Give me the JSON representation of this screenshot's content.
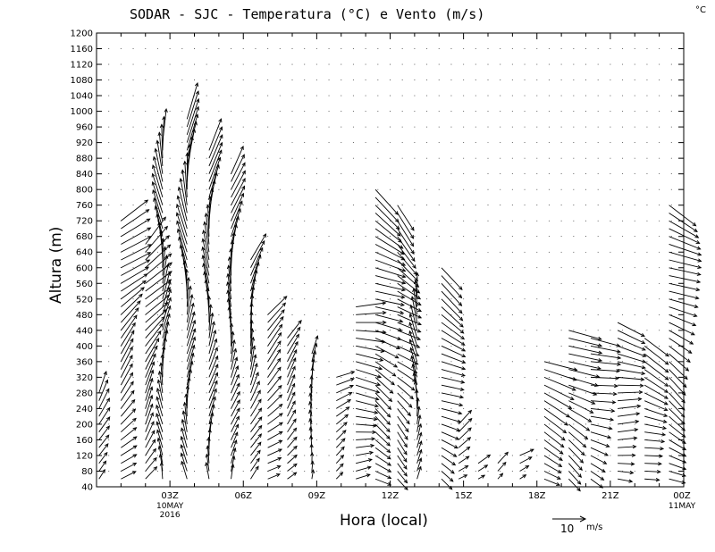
{
  "chart_data": {
    "type": "wind_barb_profile",
    "title": "SODAR - SJC - Temperatura (°C) e Vento (m/s)",
    "unit_corner": "°C",
    "xlabel": "Hora (local)",
    "ylabel": "Altura (m)",
    "ylim": [
      40,
      1200
    ],
    "xlim_hours": [
      0,
      24
    ],
    "y_ticks": [
      "40",
      "80",
      "120",
      "160",
      "200",
      "240",
      "280",
      "320",
      "360",
      "400",
      "440",
      "480",
      "520",
      "560",
      "600",
      "640",
      "680",
      "720",
      "760",
      "800",
      "840",
      "880",
      "920",
      "960",
      "1000",
      "1040",
      "1080",
      "1120",
      "1160",
      "1200"
    ],
    "x_ticks": [
      {
        "hour": 3,
        "label": "03Z",
        "sub1": "10MAY",
        "sub2": "2016"
      },
      {
        "hour": 6,
        "label": "06Z",
        "sub1": "",
        "sub2": ""
      },
      {
        "hour": 9,
        "label": "09Z",
        "sub1": "",
        "sub2": ""
      },
      {
        "hour": 12,
        "label": "12Z",
        "sub1": "",
        "sub2": ""
      },
      {
        "hour": 15,
        "label": "15Z",
        "sub1": "",
        "sub2": ""
      },
      {
        "hour": 18,
        "label": "18Z",
        "sub1": "",
        "sub2": ""
      },
      {
        "hour": 21,
        "label": "21Z",
        "sub1": "",
        "sub2": ""
      },
      {
        "hour": 24,
        "label": "00Z",
        "sub1": "11MAY",
        "sub2": ""
      }
    ],
    "reference_vector": {
      "speed": 10,
      "label": "10",
      "unit": "m/s"
    },
    "profiles": [
      {
        "hour": 0.1,
        "top": 280,
        "dir": 200,
        "speed": 6
      },
      {
        "hour": 1.0,
        "top": 720,
        "dir": 225,
        "speed": 9
      },
      {
        "hour": 2.0,
        "top": 660,
        "dir": 215,
        "speed": 9
      },
      {
        "hour": 2.7,
        "top": 920,
        "dir": 180,
        "speed": 9
      },
      {
        "hour": 3.7,
        "top": 980,
        "dir": 180,
        "speed": 10
      },
      {
        "hour": 4.6,
        "top": 900,
        "dir": 185,
        "speed": 9
      },
      {
        "hour": 5.5,
        "top": 840,
        "dir": 190,
        "speed": 8
      },
      {
        "hour": 6.3,
        "top": 620,
        "dir": 200,
        "speed": 8
      },
      {
        "hour": 7.0,
        "top": 480,
        "dir": 230,
        "speed": 7
      },
      {
        "hour": 7.8,
        "top": 420,
        "dir": 220,
        "speed": 6
      },
      {
        "hour": 8.8,
        "top": 380,
        "dir": 190,
        "speed": 5
      },
      {
        "hour": 9.8,
        "top": 330,
        "dir": 240,
        "speed": 5
      },
      {
        "hour": 10.6,
        "top": 500,
        "dir": 270,
        "speed": 8
      },
      {
        "hour": 11.4,
        "top": 800,
        "dir": 300,
        "speed": 9
      },
      {
        "hour": 12.3,
        "top": 760,
        "dir": 310,
        "speed": 8
      },
      {
        "hour": 13.1,
        "top": 520,
        "dir": 180,
        "speed": 7
      },
      {
        "hour": 14.1,
        "top": 600,
        "dir": 300,
        "speed": 8
      },
      {
        "hour": 14.8,
        "top": 200,
        "dir": 240,
        "speed": 5
      },
      {
        "hour": 15.6,
        "top": 110,
        "dir": 250,
        "speed": 4
      },
      {
        "hour": 16.4,
        "top": 100,
        "dir": 240,
        "speed": 4
      },
      {
        "hour": 17.3,
        "top": 120,
        "dir": 250,
        "speed": 4
      },
      {
        "hour": 18.3,
        "top": 360,
        "dir": 290,
        "speed": 9
      },
      {
        "hour": 19.3,
        "top": 440,
        "dir": 300,
        "speed": 9
      },
      {
        "hour": 20.2,
        "top": 420,
        "dir": 290,
        "speed": 8
      },
      {
        "hour": 21.3,
        "top": 460,
        "dir": 280,
        "speed": 8
      },
      {
        "hour": 22.4,
        "top": 420,
        "dir": 290,
        "speed": 8
      },
      {
        "hour": 23.4,
        "top": 760,
        "dir": 300,
        "speed": 9
      }
    ]
  }
}
